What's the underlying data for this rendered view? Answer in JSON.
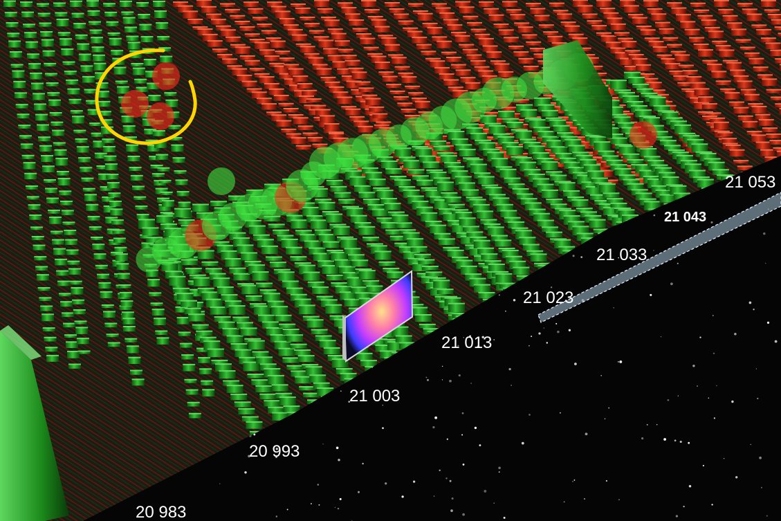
{
  "chart_data": {
    "type": "3d-bar",
    "title": "",
    "xlabel": "",
    "ylabel": "",
    "price_levels": [
      "20 983",
      "20 993",
      "21 003",
      "21 013",
      "21 023",
      "21 033",
      "21 043",
      "21 053"
    ],
    "highlighted_level": "21 043",
    "series": [
      {
        "key": "bid",
        "color": "#1fa61f"
      },
      {
        "key": "ask",
        "color": "#c82a12"
      }
    ],
    "trade_markers": {
      "colors": [
        "#3fe13f",
        "#ff2a1a"
      ]
    },
    "annotation": {
      "shape": "circle",
      "color": "#ffd400"
    },
    "background": "starfield"
  }
}
